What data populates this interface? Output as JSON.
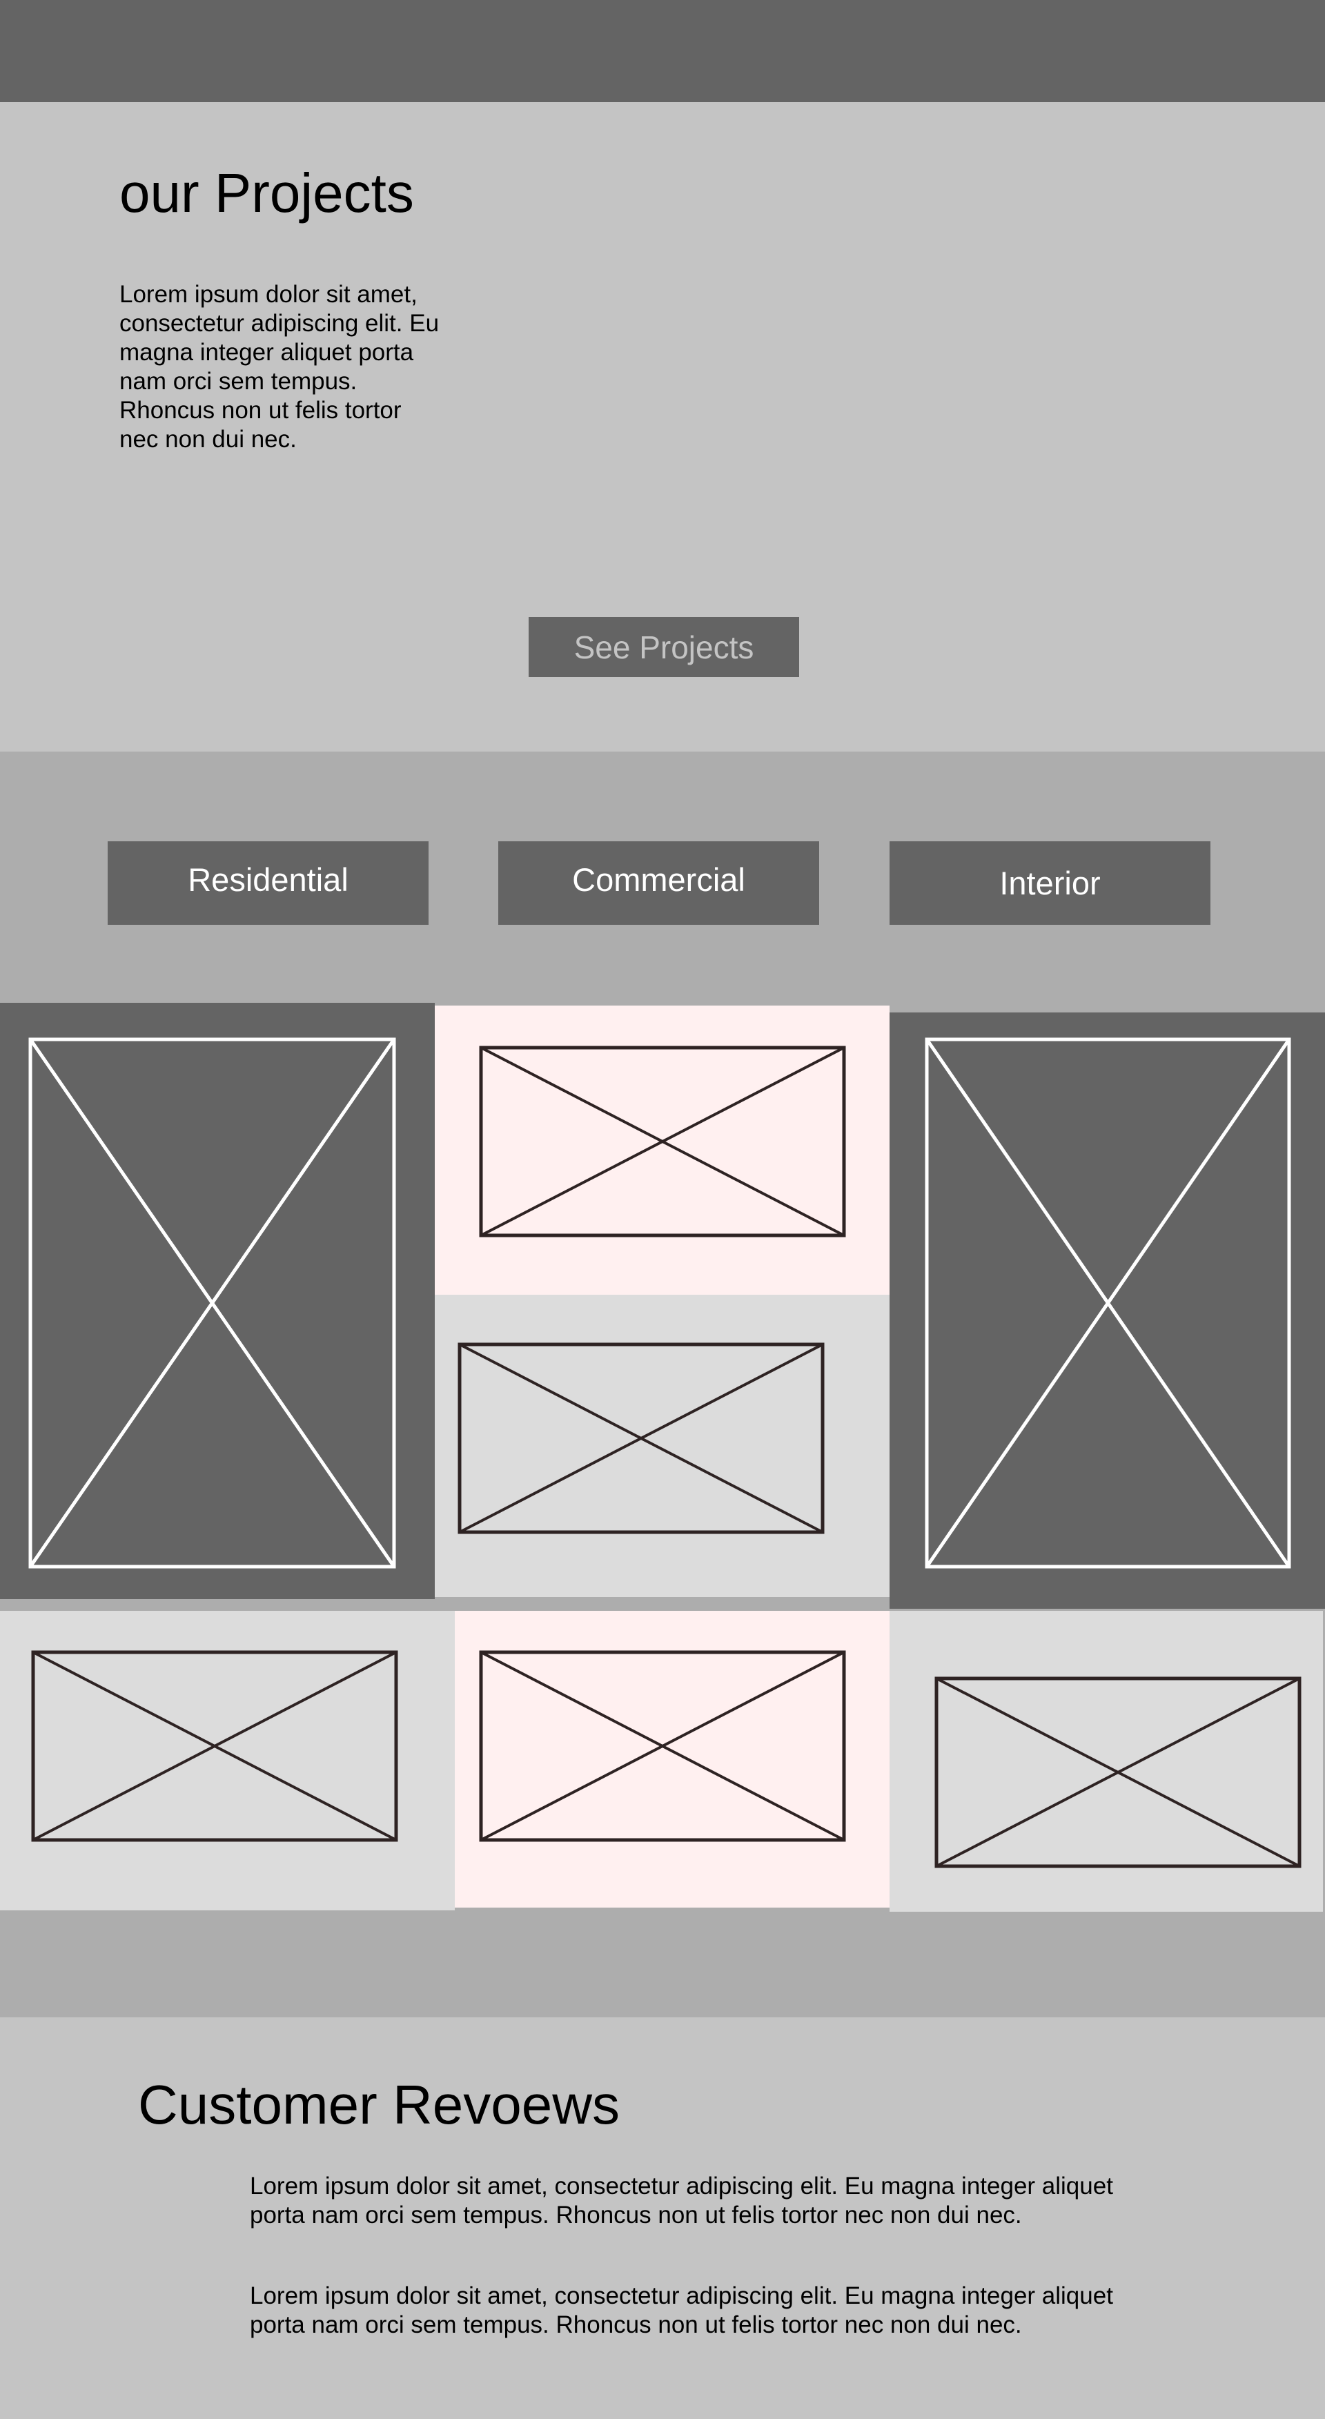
{
  "projects": {
    "title": "our Projects",
    "description": "Lorem ipsum dolor sit amet, consectetur adipiscing elit. Eu magna integer aliquet porta nam orci sem tempus. Rhoncus non ut felis tortor nec non dui nec.",
    "cta_label": "See Projects"
  },
  "categories": [
    {
      "label": "Residential"
    },
    {
      "label": "Commercial"
    },
    {
      "label": "Interior"
    }
  ],
  "gallery": {
    "placeholder_icon": "image-placeholder-icon",
    "colors": {
      "dark_tile": "#646464",
      "pink_tile": "#fff0f0",
      "light_tile": "#dcdcdc",
      "dark_placeholder_stroke": "#ffffff",
      "light_placeholder_stroke": "#2e2323"
    }
  },
  "reviews": {
    "title": "Customer Revoews",
    "items": [
      {
        "text": "Lorem ipsum dolor sit amet, consectetur adipiscing elit. Eu magna integer aliquet porta nam orci sem tempus. Rhoncus non ut felis tortor nec non dui nec."
      },
      {
        "text": "Lorem ipsum dolor sit amet, consectetur adipiscing elit. Eu magna integer aliquet porta nam orci sem tempus. Rhoncus non ut felis tortor nec non dui nec."
      }
    ]
  },
  "theme": {
    "page_bg": "#c4c4c4",
    "band_bg": "#adadad",
    "header_bg": "#646464",
    "button_bg": "#646464",
    "button_text": "#ffffff",
    "cta_text": "#c4c4c4"
  }
}
